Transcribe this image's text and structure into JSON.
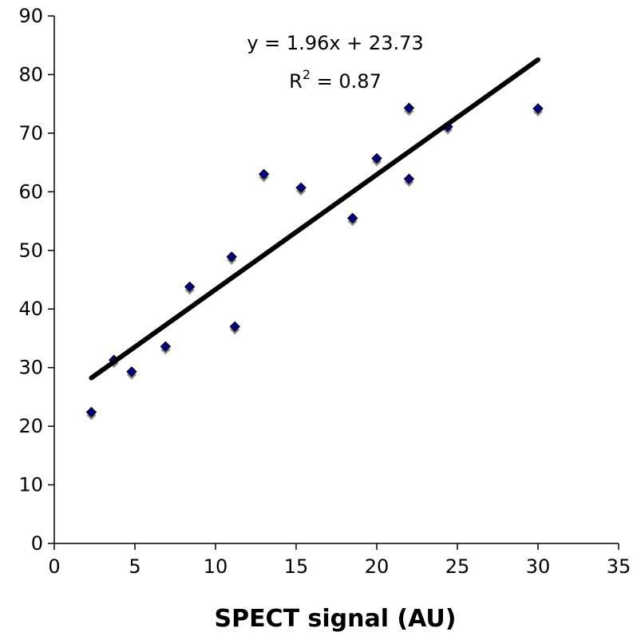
{
  "chart_data": {
    "type": "scatter",
    "title": "",
    "xlabel": "SPECT signal (AU)",
    "ylabel": "",
    "xlim": [
      0,
      35
    ],
    "ylim": [
      0,
      90
    ],
    "x_ticks": [
      0,
      5,
      10,
      15,
      20,
      25,
      30,
      35
    ],
    "y_ticks": [
      0,
      10,
      20,
      30,
      40,
      50,
      60,
      70,
      80,
      90
    ],
    "grid": false,
    "legend": "none",
    "marker": "diamond",
    "marker_color": "#000080",
    "series": [
      {
        "x": [
          2.3,
          3.7,
          4.8,
          6.9,
          8.4,
          11.0,
          11.2,
          13.0,
          15.3,
          18.5,
          20.0,
          22.0,
          22.0,
          24.4,
          30.0
        ],
        "y": [
          22.4,
          31.3,
          29.3,
          33.6,
          43.8,
          48.9,
          37.0,
          63.0,
          60.7,
          55.5,
          65.7,
          74.3,
          62.2,
          71.1,
          74.2
        ]
      }
    ],
    "trendline": {
      "x_start": 2.3,
      "x_end": 30.0,
      "slope": 1.96,
      "intercept": 23.73,
      "color": "#000000"
    },
    "annotations": {
      "equation": "y = 1.96x + 23.73",
      "r2_prefix": "R",
      "r2_sup": "2",
      "r2_value": " = 0.87"
    }
  }
}
